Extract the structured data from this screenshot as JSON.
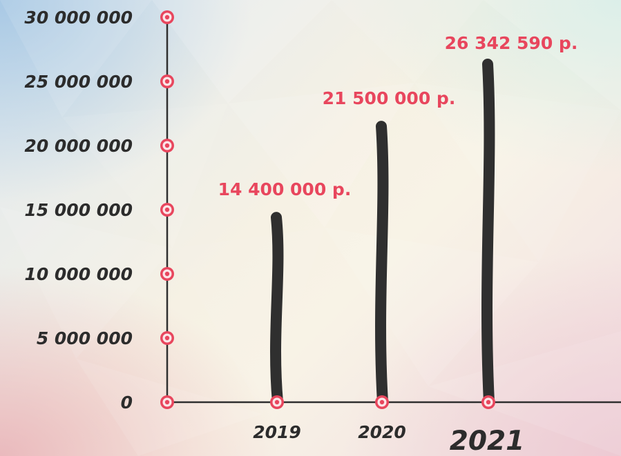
{
  "colors": {
    "accent": "#e8465d",
    "bar": "#2f2f2f",
    "axis": "#2f2f2f",
    "text": "#2c2c2c"
  },
  "chart_data": {
    "type": "bar",
    "categories": [
      "2019",
      "2020",
      "2021"
    ],
    "values": [
      14400000,
      21500000,
      26342590
    ],
    "data_labels": [
      "14 400 000 р.",
      "21 500 000 р.",
      "26 342 590 р."
    ],
    "y_ticks": [
      0,
      5000000,
      10000000,
      15000000,
      20000000,
      25000000,
      30000000
    ],
    "y_tick_labels": [
      "0",
      "5 000 000",
      "10 000 000",
      "15 000 000",
      "20 000 000",
      "25 000 000",
      "30 000 000"
    ],
    "ylim": [
      0,
      30000000
    ],
    "emphasized_category": "2021",
    "title": "",
    "xlabel": "",
    "ylabel": "",
    "grid": false,
    "legend": "none"
  }
}
